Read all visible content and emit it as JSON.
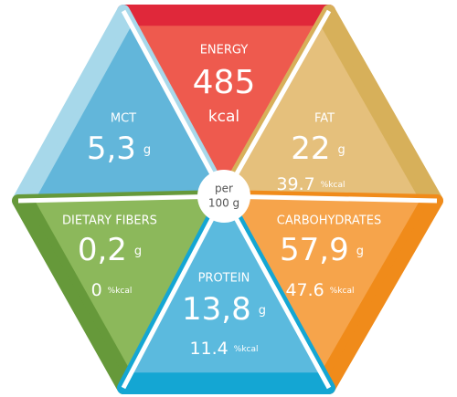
{
  "center": {
    "line1": "per",
    "line2": "100 g"
  },
  "segments": [
    {
      "label": "ENERGY",
      "value": "485",
      "unit": "kcal"
    },
    {
      "label": "MCT",
      "value": "5,3",
      "unit": "g"
    },
    {
      "label": "FAT",
      "value": "22",
      "unit": "g",
      "pct": "39.7",
      "pct_unit": "%kcal"
    },
    {
      "label": "DIETARY FIBERS",
      "value": "0,2",
      "unit": "g",
      "pct": "0",
      "pct_unit": "%kcal"
    },
    {
      "label": "CARBOHYDRATES",
      "value": "57,9",
      "unit": "g",
      "pct": "47.6",
      "pct_unit": "%kcal"
    },
    {
      "label": "PROTEIN",
      "value": "13,8",
      "unit": "g",
      "pct": "11.4",
      "pct_unit": "%kcal"
    }
  ]
}
